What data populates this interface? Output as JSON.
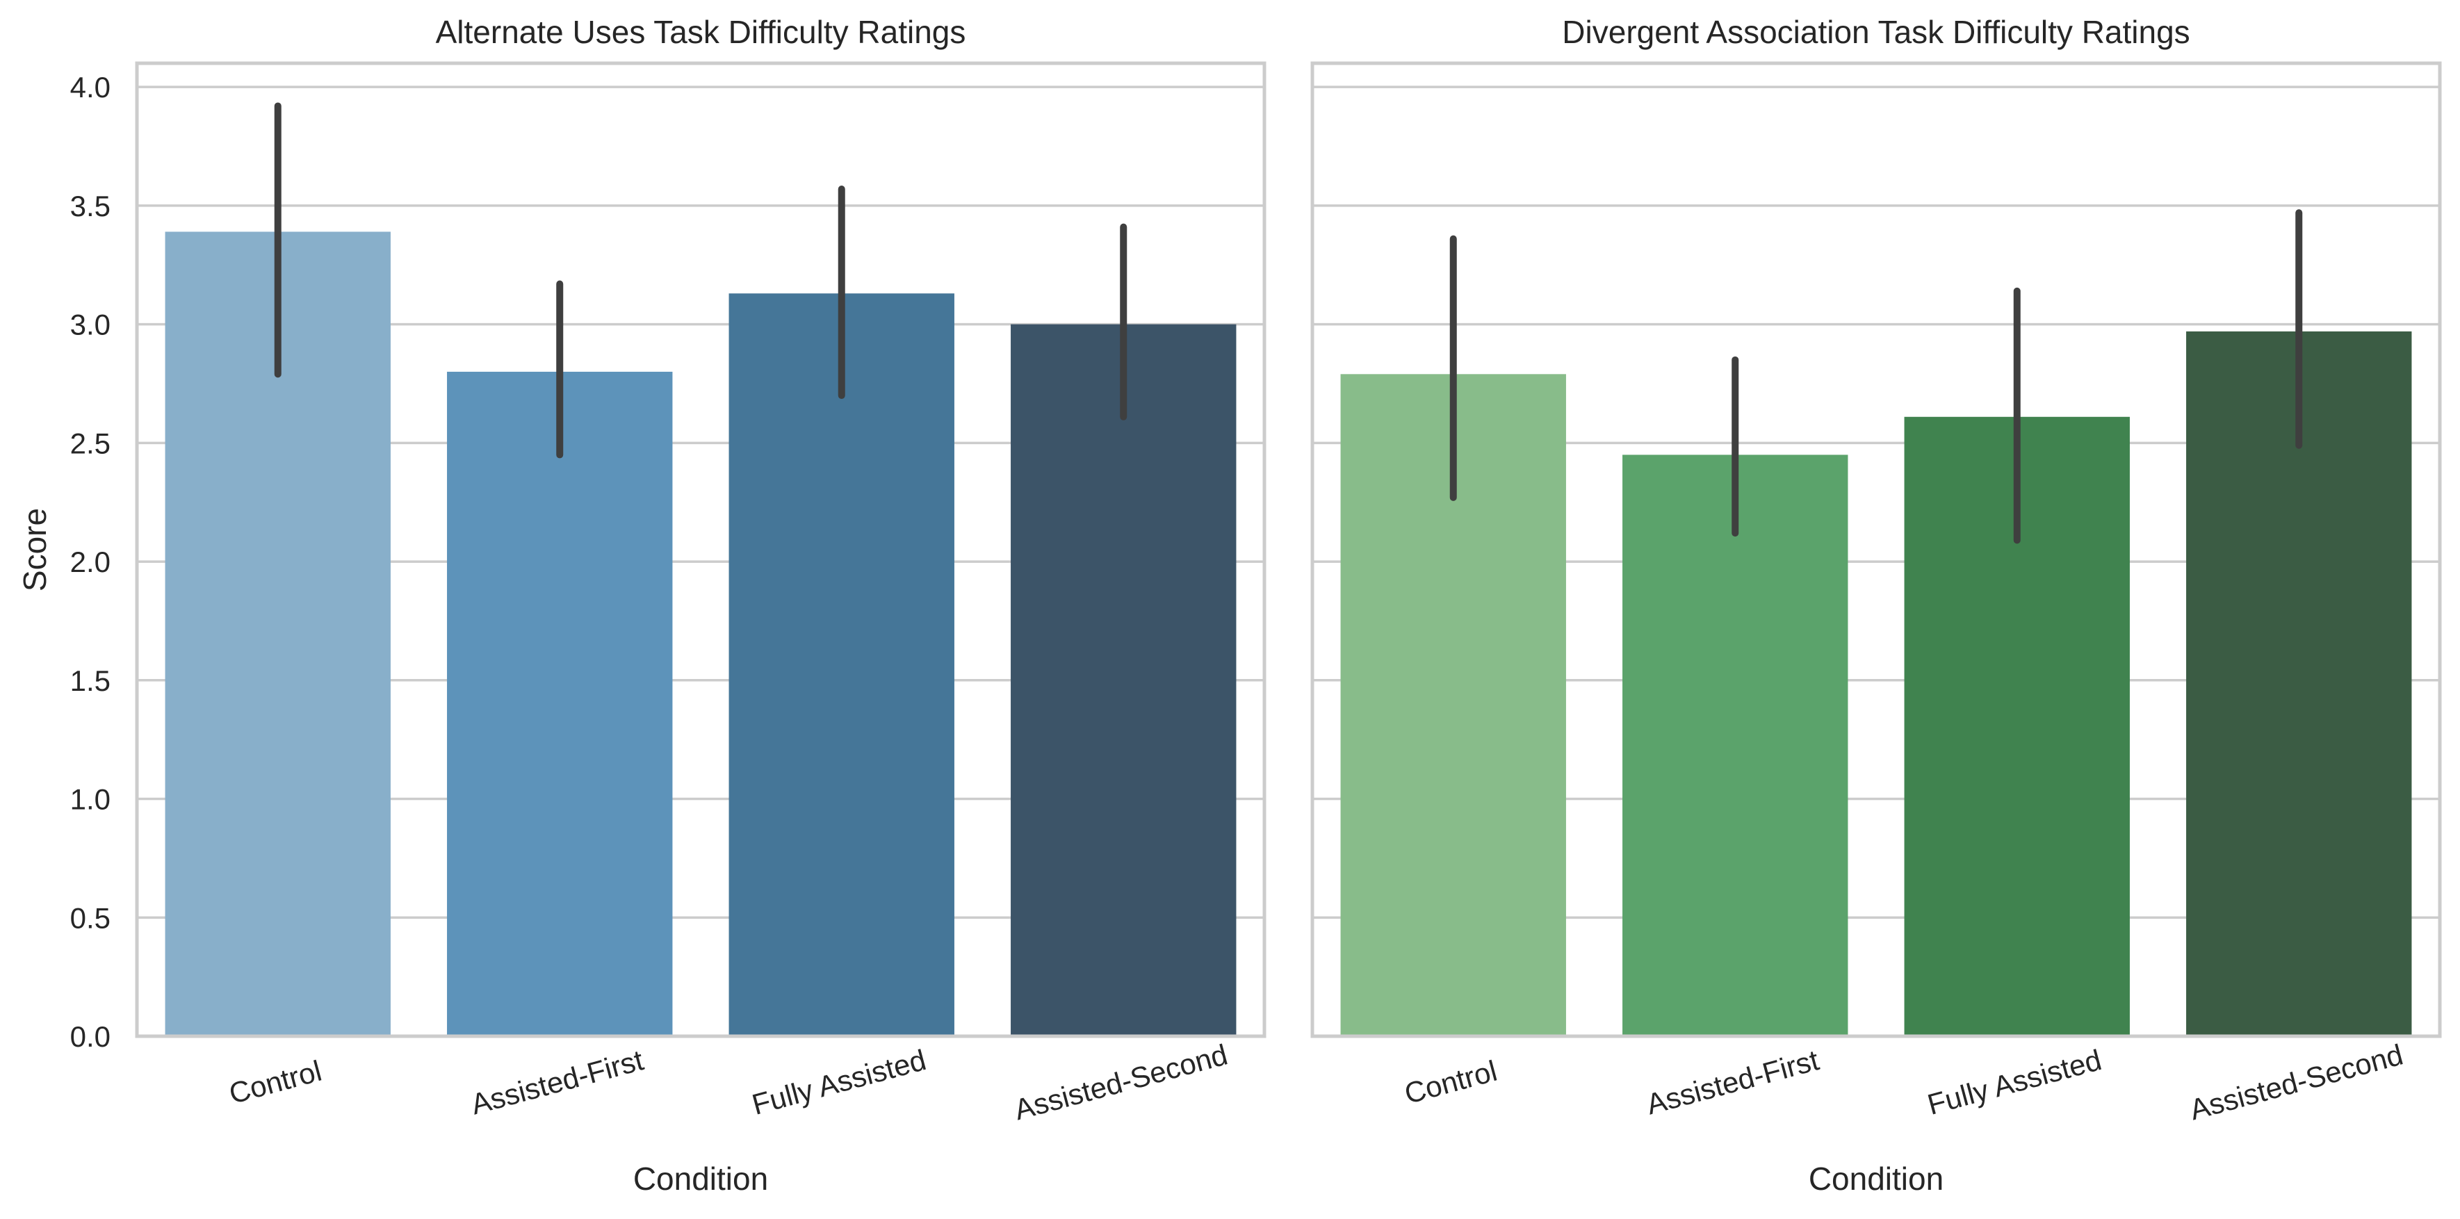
{
  "chart_data": [
    {
      "type": "bar",
      "title": "Alternate Uses Task Difficulty Ratings",
      "xlabel": "Condition",
      "ylabel": "Score",
      "ylim": [
        0,
        4.1
      ],
      "yticks": [
        "0.0",
        "0.5",
        "1.0",
        "1.5",
        "2.0",
        "2.5",
        "3.0",
        "3.5",
        "4.0"
      ],
      "grid": "horizontal",
      "categories": [
        "Control",
        "Assisted-First",
        "Fully Assisted",
        "Assisted-Second"
      ],
      "values": [
        3.39,
        2.8,
        3.13,
        3.0
      ],
      "error_bars": [
        [
          2.79,
          3.92
        ],
        [
          2.45,
          3.17
        ],
        [
          2.7,
          3.57
        ],
        [
          2.61,
          3.41
        ]
      ],
      "colors": [
        "#88AFCA",
        "#5D93BA",
        "#457698",
        "#3C5468"
      ]
    },
    {
      "type": "bar",
      "title": "Divergent Association Task Difficulty Ratings",
      "xlabel": "Condition",
      "ylabel": "",
      "ylim": [
        0,
        4.1
      ],
      "yticks": [],
      "grid": "horizontal",
      "categories": [
        "Control",
        "Assisted-First",
        "Fully Assisted",
        "Assisted-Second"
      ],
      "values": [
        2.79,
        2.45,
        2.61,
        2.97
      ],
      "error_bars": [
        [
          2.27,
          3.36
        ],
        [
          2.12,
          2.85
        ],
        [
          2.09,
          3.14
        ],
        [
          2.49,
          3.47
        ]
      ],
      "colors": [
        "#88BC8A",
        "#5BA36B",
        "#40834F",
        "#3B5C44"
      ]
    }
  ]
}
